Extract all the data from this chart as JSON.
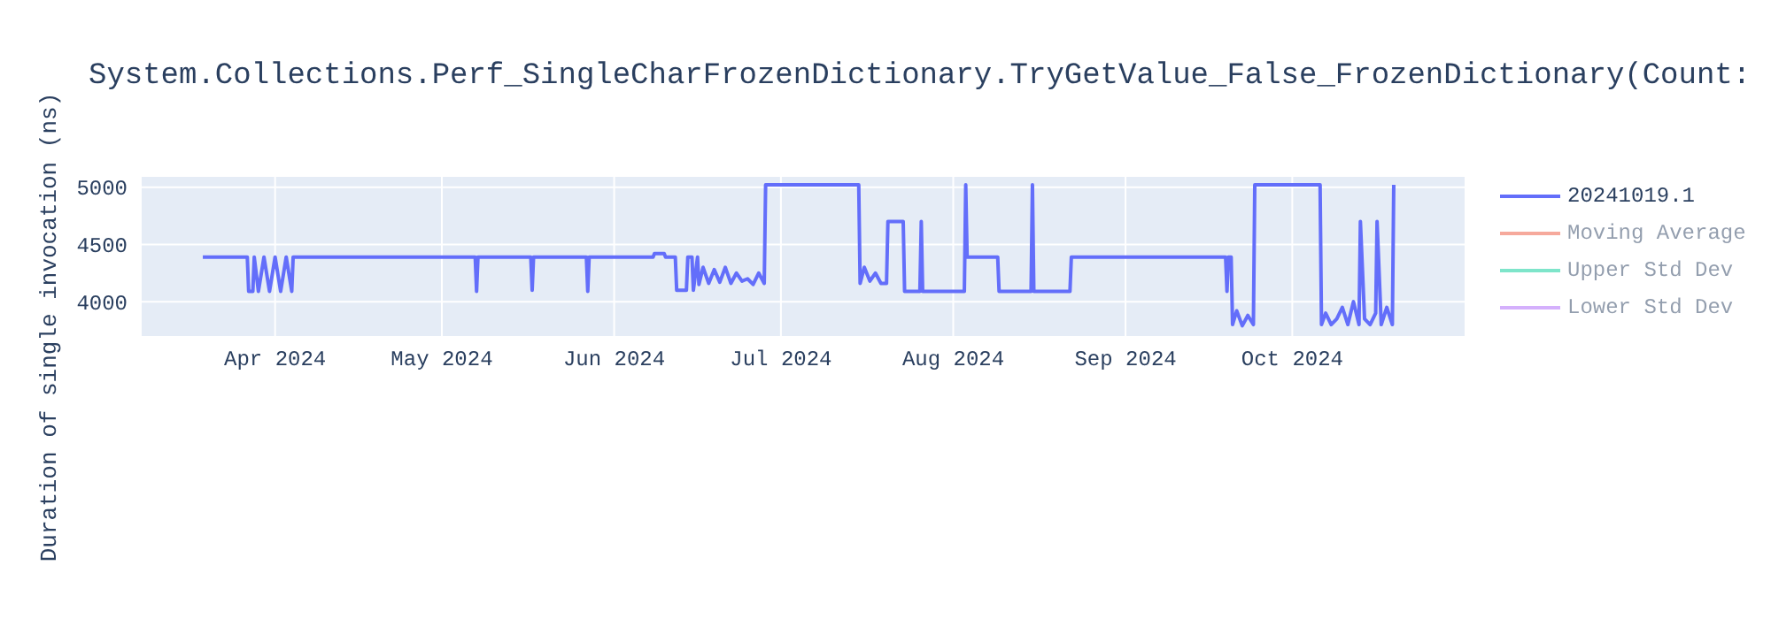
{
  "chart_data": {
    "type": "line",
    "title": "System.Collections.Perf_SingleCharFrozenDictionary.TryGetValue_False_FrozenDictionary(Count:",
    "ylabel": "Duration of single invocation (ns)",
    "xlim": [
      "2024-03-08",
      "2024-11-01"
    ],
    "xticks": [
      {
        "value": "2024-04-01",
        "label": "Apr 2024"
      },
      {
        "value": "2024-05-01",
        "label": "May 2024"
      },
      {
        "value": "2024-06-01",
        "label": "Jun 2024"
      },
      {
        "value": "2024-07-01",
        "label": "Jul 2024"
      },
      {
        "value": "2024-08-01",
        "label": "Aug 2024"
      },
      {
        "value": "2024-09-01",
        "label": "Sep 2024"
      },
      {
        "value": "2024-10-01",
        "label": "Oct 2024"
      }
    ],
    "ylim": [
      3700,
      5090
    ],
    "yticks": [
      4000,
      4500,
      5000
    ],
    "grid": true,
    "legend": "top right",
    "marker": "none",
    "line_style": "solid",
    "series": [
      {
        "name": "20241019.1",
        "color": "#636efa",
        "x": [
          "2024-03-19",
          "2024-03-27",
          "2024-03-27T06:00",
          "2024-03-28",
          "2024-03-28T06:00",
          "2024-03-29",
          "2024-03-30",
          "2024-03-31",
          "2024-04-01",
          "2024-04-02",
          "2024-04-03",
          "2024-04-04",
          "2024-04-04T06:00",
          "2024-05-07",
          "2024-05-07T06:00",
          "2024-05-07T12:00",
          "2024-05-17",
          "2024-05-17T06:00",
          "2024-05-17T12:00",
          "2024-05-27",
          "2024-05-27T06:00",
          "2024-05-27T12:00",
          "2024-06-08",
          "2024-06-08T06:00",
          "2024-06-10",
          "2024-06-10T06:00",
          "2024-06-12",
          "2024-06-12T06:00",
          "2024-06-14",
          "2024-06-14T06:00",
          "2024-06-15",
          "2024-06-15T06:00",
          "2024-06-16",
          "2024-06-16T06:00",
          "2024-06-17",
          "2024-06-18",
          "2024-06-19",
          "2024-06-20",
          "2024-06-21",
          "2024-06-22",
          "2024-06-23",
          "2024-06-24",
          "2024-06-25",
          "2024-06-26",
          "2024-06-27",
          "2024-06-28",
          "2024-06-28T06:00",
          "2024-07-15",
          "2024-07-15T06:00",
          "2024-07-16",
          "2024-07-17",
          "2024-07-18",
          "2024-07-19",
          "2024-07-20",
          "2024-07-20T06:00",
          "2024-07-23",
          "2024-07-23T06:00",
          "2024-07-26",
          "2024-07-26T06:00",
          "2024-07-26T12:00",
          "2024-08-03",
          "2024-08-03T06:00",
          "2024-08-03T12:00",
          "2024-08-09",
          "2024-08-09T06:00",
          "2024-08-15",
          "2024-08-15T06:00",
          "2024-08-15T12:00",
          "2024-08-22",
          "2024-08-22T06:00",
          "2024-09-19",
          "2024-09-19T06:00",
          "2024-09-19T12:00",
          "2024-09-20",
          "2024-09-20T06:00",
          "2024-09-21",
          "2024-09-22",
          "2024-09-23",
          "2024-09-24",
          "2024-09-24T06:00",
          "2024-10-06",
          "2024-10-06T06:00",
          "2024-10-07",
          "2024-10-08",
          "2024-10-09",
          "2024-10-10",
          "2024-10-11",
          "2024-10-12",
          "2024-10-13",
          "2024-10-13T06:00",
          "2024-10-14",
          "2024-10-15",
          "2024-10-16",
          "2024-10-16T06:00",
          "2024-10-17",
          "2024-10-18",
          "2024-10-19",
          "2024-10-19T06:00"
        ],
        "values": [
          4390,
          4390,
          4090,
          4090,
          4390,
          4090,
          4390,
          4090,
          4390,
          4090,
          4390,
          4090,
          4390,
          4390,
          4090,
          4390,
          4390,
          4100,
          4390,
          4390,
          4090,
          4390,
          4390,
          4420,
          4420,
          4390,
          4390,
          4100,
          4100,
          4390,
          4390,
          4100,
          4390,
          4150,
          4300,
          4160,
          4280,
          4170,
          4300,
          4160,
          4250,
          4180,
          4200,
          4150,
          4250,
          4160,
          5020,
          5020,
          4160,
          4300,
          4180,
          4250,
          4160,
          4160,
          4700,
          4700,
          4090,
          4090,
          4700,
          4090,
          4090,
          5020,
          4390,
          4390,
          4090,
          4090,
          5020,
          4090,
          4090,
          4390,
          4390,
          4090,
          4390,
          4390,
          3800,
          3920,
          3790,
          3880,
          3800,
          5020,
          5020,
          3800,
          3900,
          3800,
          3850,
          3950,
          3800,
          4000,
          3800,
          4700,
          3850,
          3800,
          3900,
          4700,
          3800,
          3950,
          3800,
          5020
        ]
      },
      {
        "name": "Moving Average",
        "color": "#ef553b"
      },
      {
        "name": "Upper Std Dev",
        "color": "#00cc96"
      },
      {
        "name": "Lower Std Dev",
        "color": "#ab63fa"
      }
    ]
  }
}
